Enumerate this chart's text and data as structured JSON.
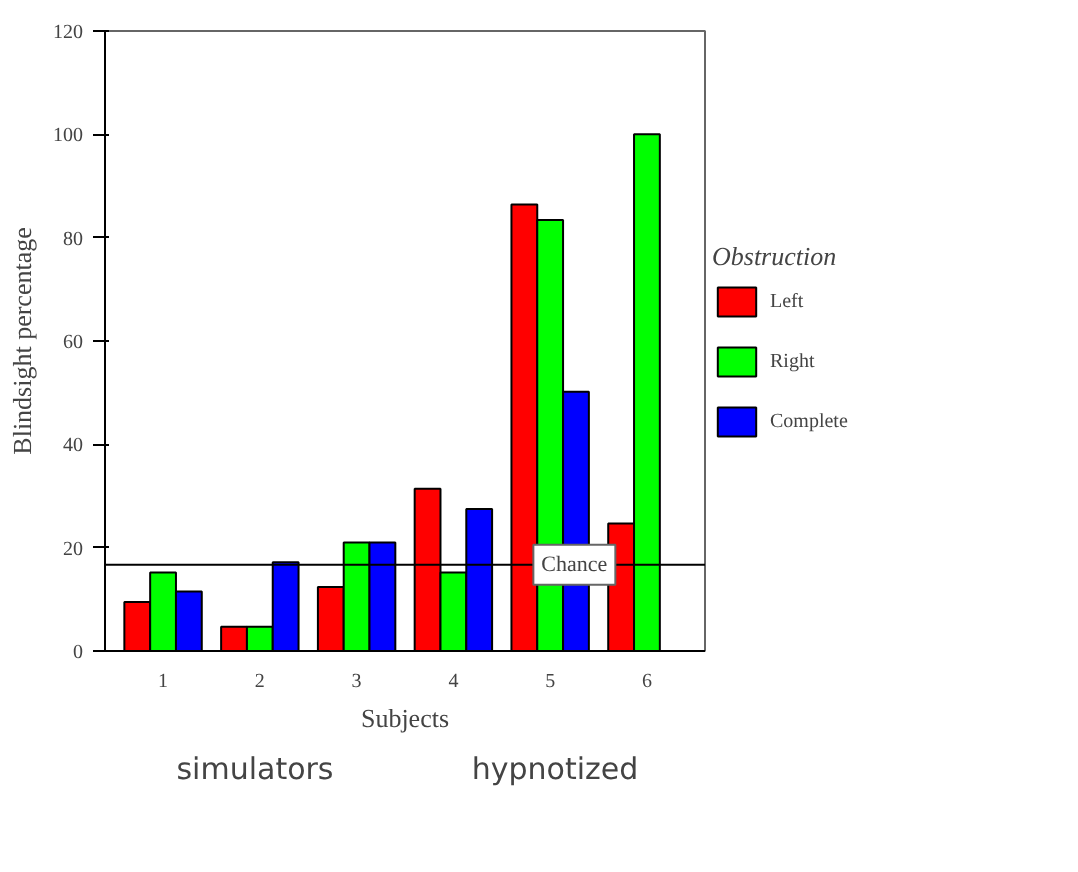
{
  "chart_data": {
    "type": "bar",
    "xlabel": "Subjects",
    "ylabel": "Blindsight percentage",
    "legend_title": "Obstruction",
    "categories": [
      "1",
      "2",
      "3",
      "4",
      "5",
      "6"
    ],
    "series": [
      {
        "name": "Left",
        "color": "#ff0000",
        "values": [
          9.5,
          4.7,
          12.4,
          31.4,
          86.4,
          24.7
        ]
      },
      {
        "name": "Right",
        "color": "#00ff00",
        "values": [
          15.2,
          4.7,
          21,
          15.2,
          83.4,
          100
        ]
      },
      {
        "name": "Complete",
        "color": "#0000ff",
        "values": [
          11.5,
          17.2,
          21,
          27.5,
          50.2,
          0
        ]
      }
    ],
    "ylim": [
      0,
      120
    ],
    "yticks": [
      0,
      20,
      40,
      60,
      80,
      100,
      120
    ],
    "ref_lines": [
      {
        "axis": "y",
        "value": 16.7,
        "label": "Chance",
        "color": "#000000"
      }
    ],
    "annotations": [
      "simulators",
      "hypnotized"
    ],
    "legend": "right",
    "grid": false
  }
}
